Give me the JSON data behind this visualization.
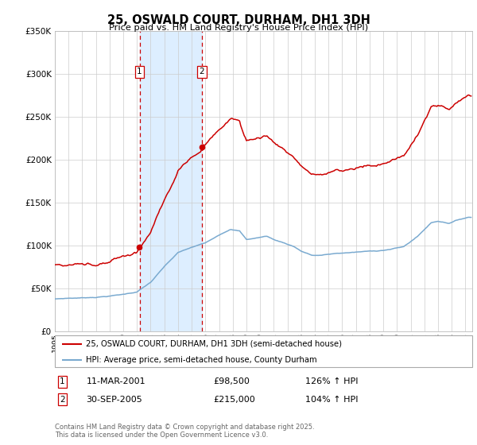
{
  "title": "25, OSWALD COURT, DURHAM, DH1 3DH",
  "subtitle": "Price paid vs. HM Land Registry's House Price Index (HPI)",
  "sale1_date": "11-MAR-2001",
  "sale1_price": 98500,
  "sale1_hpi": "126% ↑ HPI",
  "sale2_date": "30-SEP-2005",
  "sale2_price": 215000,
  "sale2_hpi": "104% ↑ HPI",
  "legend_property": "25, OSWALD COURT, DURHAM, DH1 3DH (semi-detached house)",
  "legend_hpi": "HPI: Average price, semi-detached house, County Durham",
  "footnote1": "Contains HM Land Registry data © Crown copyright and database right 2025.",
  "footnote2": "This data is licensed under the Open Government Licence v3.0.",
  "property_color": "#cc0000",
  "hpi_color": "#7aaad0",
  "shade_color": "#ddeeff",
  "grid_color": "#cccccc",
  "bg_color": "#ffffff",
  "ylim": [
    0,
    350000
  ],
  "sale1_x": 2001.19,
  "sale2_x": 2005.75,
  "xmin": 1995.0,
  "xmax": 2025.5
}
